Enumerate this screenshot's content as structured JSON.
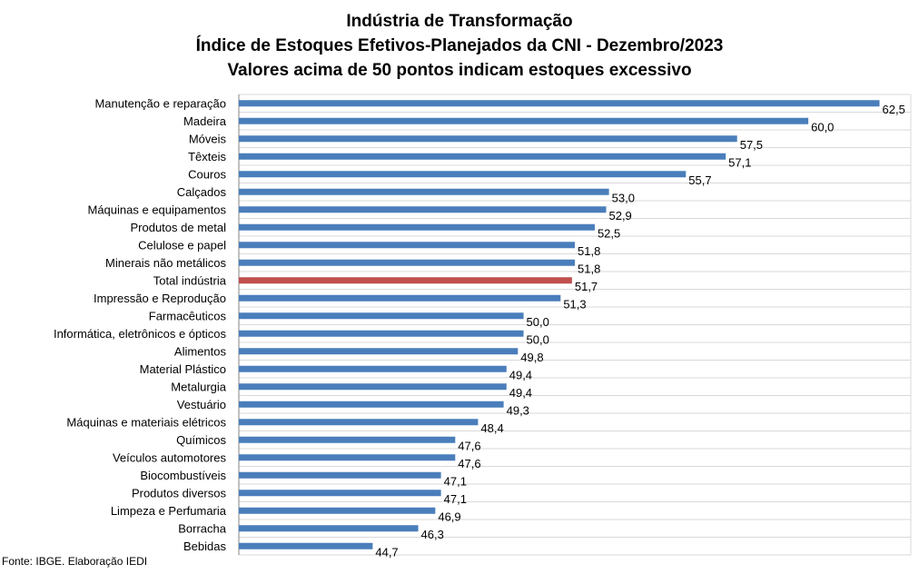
{
  "chart_data": {
    "type": "bar",
    "orientation": "horizontal",
    "title": "Indústria de Transformação",
    "subtitle": "Índice de Estoques Efetivos-Planejados da CNI - Dezembro/2023",
    "subtitle2": "Valores acima de 50 pontos indicam estoques excessivo",
    "xlabel": "",
    "ylabel": "",
    "xlim": [
      40,
      63.6
    ],
    "grid": true,
    "legend": "none",
    "categories": [
      "Manutenção e reparação",
      "Madeira",
      "Móveis",
      "Têxteis",
      "Couros",
      "Calçados",
      "Máquinas e equipamentos",
      "Produtos de metal",
      "Celulose e papel",
      "Minerais não metálicos",
      "Total indústria",
      "Impressão e Reprodução",
      "Farmacêuticos",
      "Informática, eletrônicos e ópticos",
      "Alimentos",
      "Material Plástico",
      "Metalurgia",
      "Vestuário",
      "Máquinas e materiais elétricos",
      "Químicos",
      "Veículos automotores",
      "Biocombustíveis",
      "Produtos diversos",
      "Limpeza e Perfumaria",
      "Borracha",
      "Bebidas"
    ],
    "values": [
      62.5,
      60.0,
      57.5,
      57.1,
      55.7,
      53.0,
      52.9,
      52.5,
      51.8,
      51.8,
      51.7,
      51.3,
      50.0,
      50.0,
      49.8,
      49.4,
      49.4,
      49.3,
      48.4,
      47.6,
      47.6,
      47.1,
      47.1,
      46.9,
      46.3,
      44.7
    ],
    "value_labels": [
      "62,5",
      "60,0",
      "57,5",
      "57,1",
      "55,7",
      "53,0",
      "52,9",
      "52,5",
      "51,8",
      "51,8",
      "51,7",
      "51,3",
      "50,0",
      "50,0",
      "49,8",
      "49,4",
      "49,4",
      "49,3",
      "48,4",
      "47,6",
      "47,6",
      "47,1",
      "47,1",
      "46,9",
      "46,3",
      "44,7"
    ],
    "highlight_category": "Total indústria",
    "colors": {
      "bar": "#4a7ebb",
      "highlight": "#c0504d",
      "grid": "#d9d9d9",
      "axis": "#868686"
    }
  },
  "source": "Fonte: IBGE. Elaboração IEDI"
}
